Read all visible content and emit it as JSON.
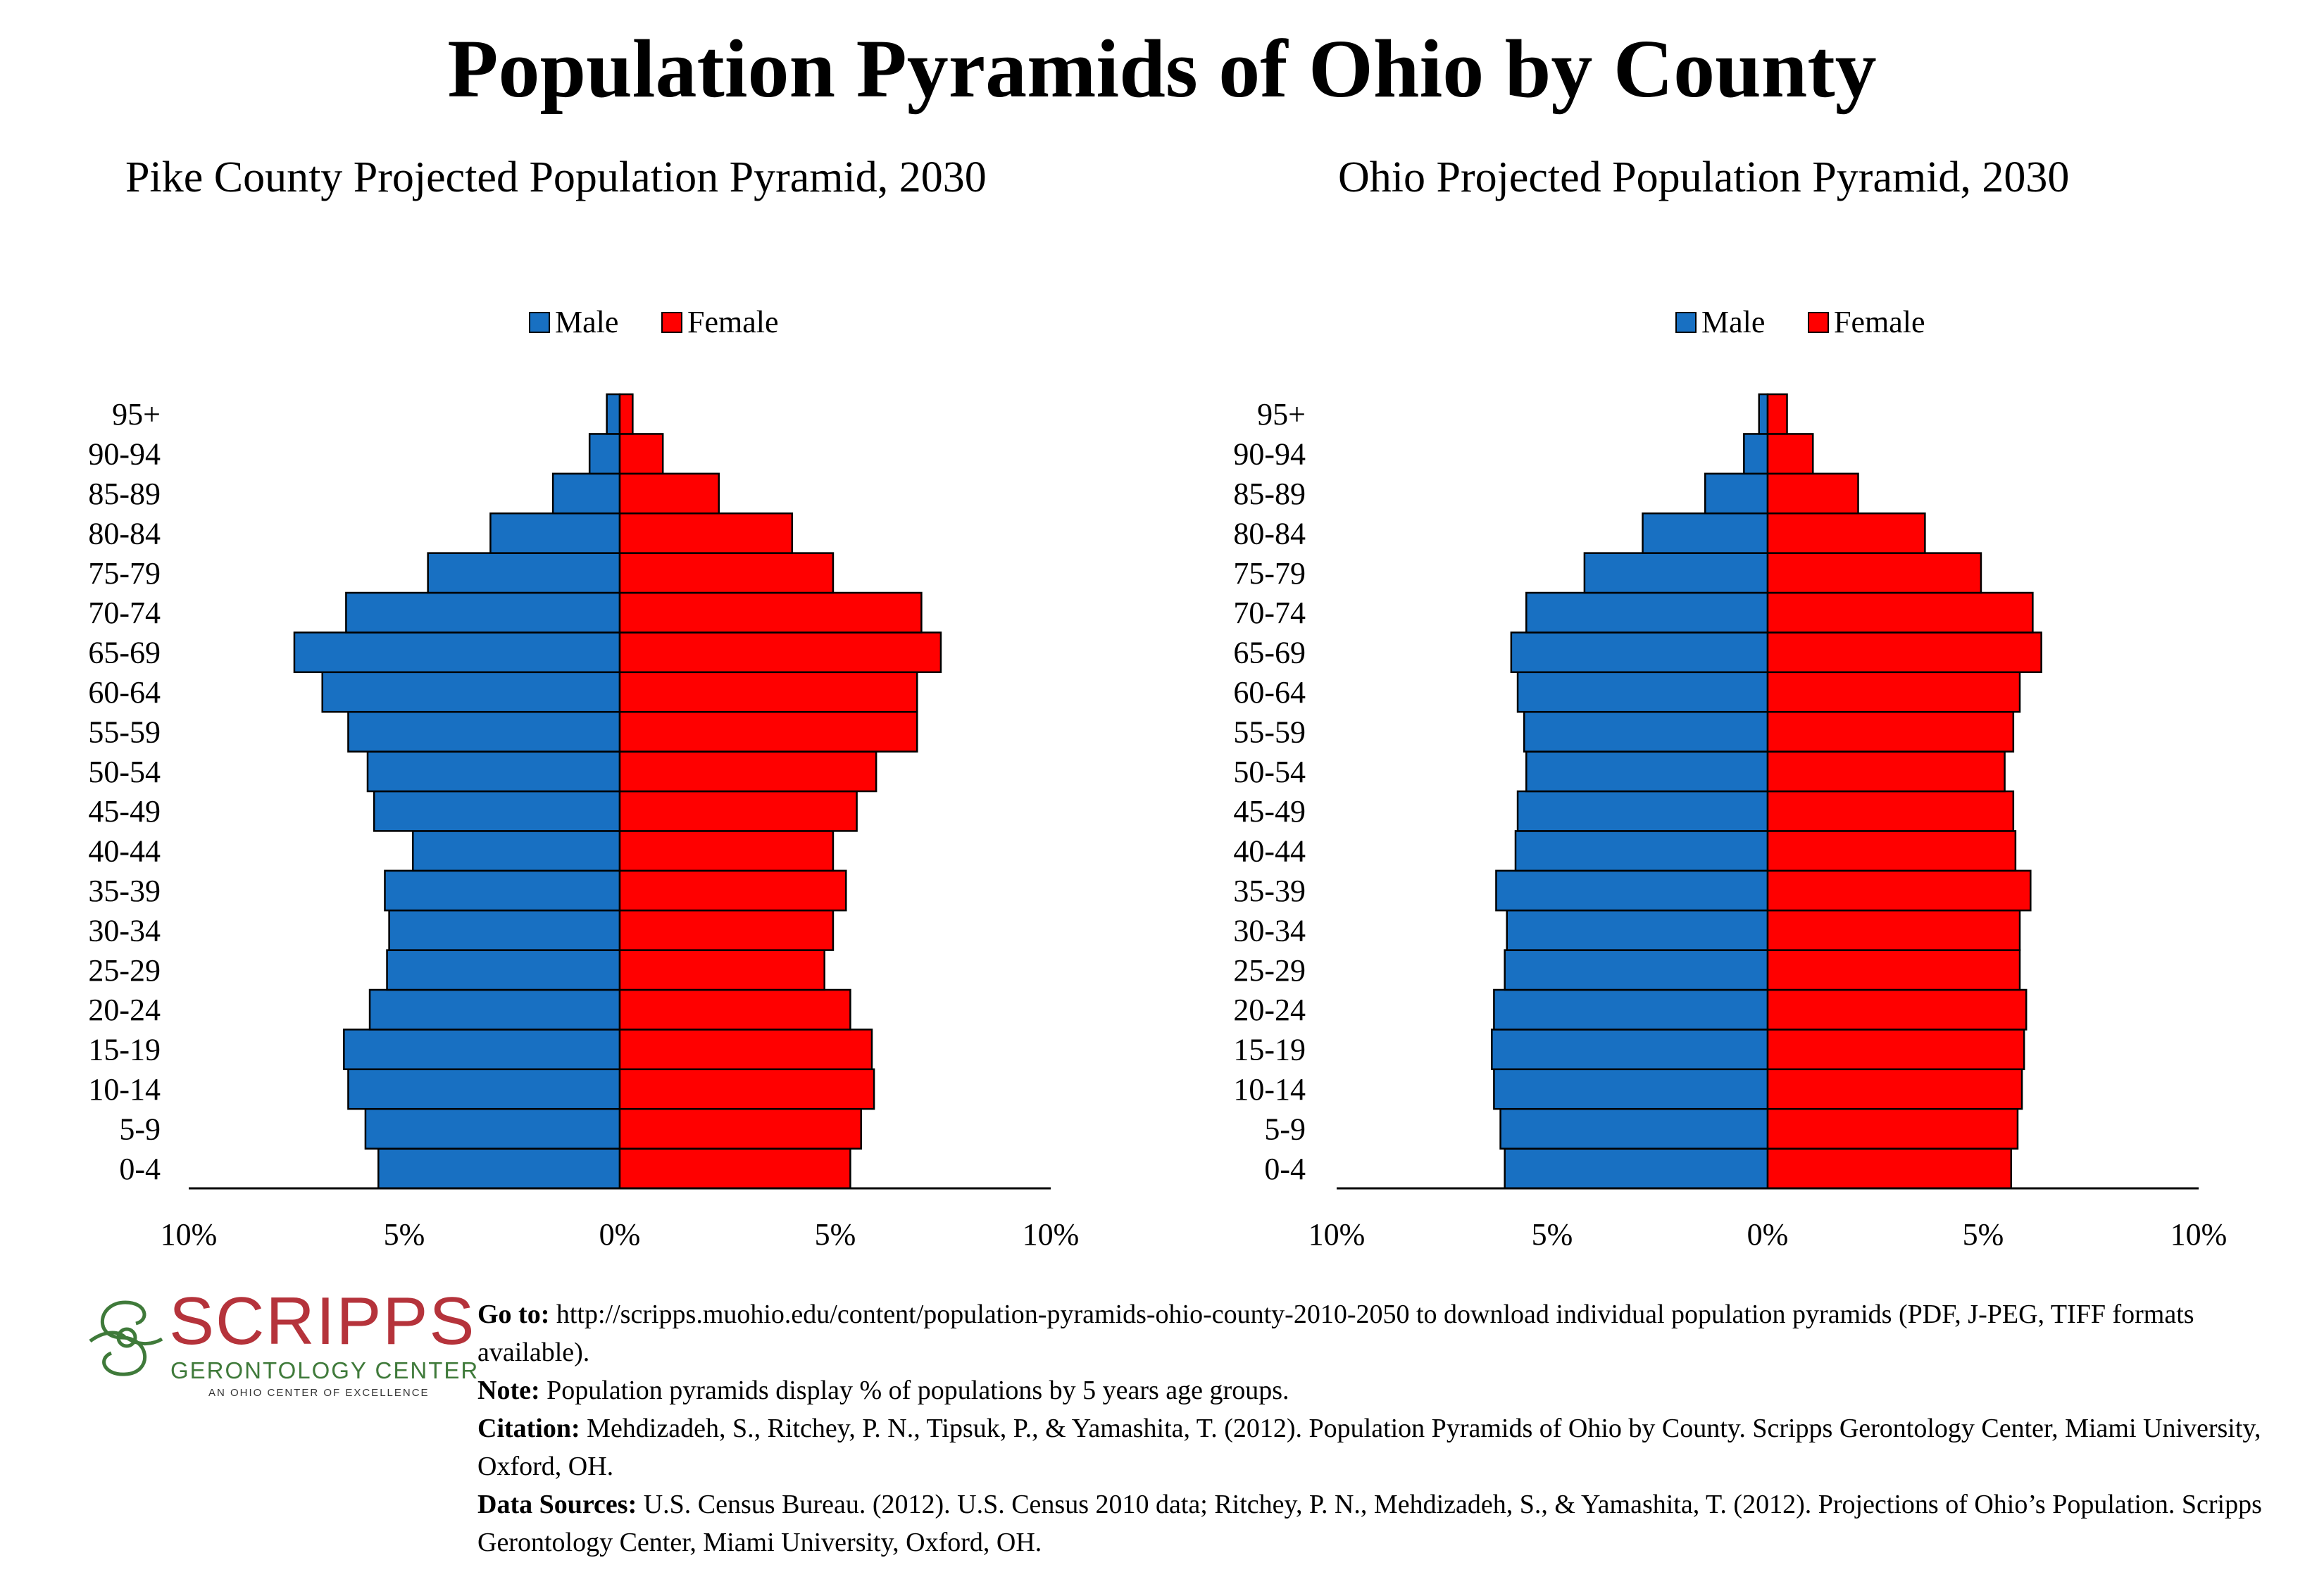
{
  "title": "Population Pyramids of Ohio by County",
  "colors": {
    "male": "#1870c2",
    "female": "#ff0000",
    "logo_red": "#b5333b",
    "logo_green": "#3f7a3a"
  },
  "legend": {
    "male": "Male",
    "female": "Female"
  },
  "chart_data": [
    {
      "type": "bar",
      "orientation": "horizontal-pyramid",
      "title": "Pike County Projected Population Pyramid, 2030",
      "categories": [
        "0-4",
        "5-9",
        "10-14",
        "15-19",
        "20-24",
        "25-29",
        "30-34",
        "35-39",
        "40-44",
        "45-49",
        "50-54",
        "55-59",
        "60-64",
        "65-69",
        "70-74",
        "75-79",
        "80-84",
        "85-89",
        "90-94",
        "95+"
      ],
      "series": [
        {
          "name": "Male",
          "values": [
            5.6,
            5.9,
            6.3,
            6.4,
            5.8,
            5.4,
            5.35,
            5.45,
            4.8,
            5.7,
            5.85,
            6.3,
            6.9,
            7.55,
            6.35,
            4.45,
            3.0,
            1.55,
            0.7,
            0.3
          ]
        },
        {
          "name": "Female",
          "values": [
            5.35,
            5.6,
            5.9,
            5.85,
            5.35,
            4.75,
            4.95,
            5.25,
            4.95,
            5.5,
            5.95,
            6.9,
            6.9,
            7.45,
            7.0,
            4.95,
            4.0,
            2.3,
            1.0,
            0.3
          ]
        }
      ],
      "xlim": [
        -10,
        10
      ],
      "x_ticks": [
        "10%",
        "5%",
        "0%",
        "5%",
        "10%"
      ],
      "legend": "top-center",
      "grid": false
    },
    {
      "type": "bar",
      "orientation": "horizontal-pyramid",
      "title": "Ohio Projected Population Pyramid, 2030",
      "categories": [
        "0-4",
        "5-9",
        "10-14",
        "15-19",
        "20-24",
        "25-29",
        "30-34",
        "35-39",
        "40-44",
        "45-49",
        "50-54",
        "55-59",
        "60-64",
        "65-69",
        "70-74",
        "75-79",
        "80-84",
        "85-89",
        "90-94",
        "95+"
      ],
      "series": [
        {
          "name": "Male",
          "values": [
            6.1,
            6.2,
            6.35,
            6.4,
            6.35,
            6.1,
            6.05,
            6.3,
            5.85,
            5.8,
            5.6,
            5.65,
            5.8,
            5.95,
            5.6,
            4.25,
            2.9,
            1.45,
            0.55,
            0.2
          ]
        },
        {
          "name": "Female",
          "values": [
            5.65,
            5.8,
            5.9,
            5.95,
            6.0,
            5.85,
            5.85,
            6.1,
            5.75,
            5.7,
            5.5,
            5.7,
            5.85,
            6.35,
            6.15,
            4.95,
            3.65,
            2.1,
            1.05,
            0.45
          ]
        }
      ],
      "xlim": [
        -10,
        10
      ],
      "x_ticks": [
        "10%",
        "5%",
        "0%",
        "5%",
        "10%"
      ],
      "legend": "top-center",
      "grid": false
    }
  ],
  "logo": {
    "word": "SCRIPPS",
    "sub": "GERONTOLOGY CENTER",
    "tag": "AN OHIO CENTER OF EXCELLENCE"
  },
  "footer": {
    "goto_label": "Go to:",
    "goto_text": "http://scripps.muohio.edu/content/population-pyramids-ohio-county-2010-2050 to download individual population pyramids (PDF, J-PEG, TIFF formats available).",
    "note_label": "Note:",
    "note_text": "Population pyramids display % of populations by 5 years age groups.",
    "citation_label": "Citation:",
    "citation_text": "Mehdizadeh, S., Ritchey, P. N., Tipsuk, P., & Yamashita, T. (2012). Population Pyramids of Ohio by County. Scripps Gerontology Center, Miami University, Oxford, OH.",
    "sources_label": "Data Sources:",
    "sources_text": "U.S. Census Bureau. (2012). U.S. Census 2010 data; Ritchey, P. N., Mehdizadeh, S., & Yamashita, T. (2012). Projections of Ohio’s Population. Scripps Gerontology Center, Miami University, Oxford, OH."
  }
}
